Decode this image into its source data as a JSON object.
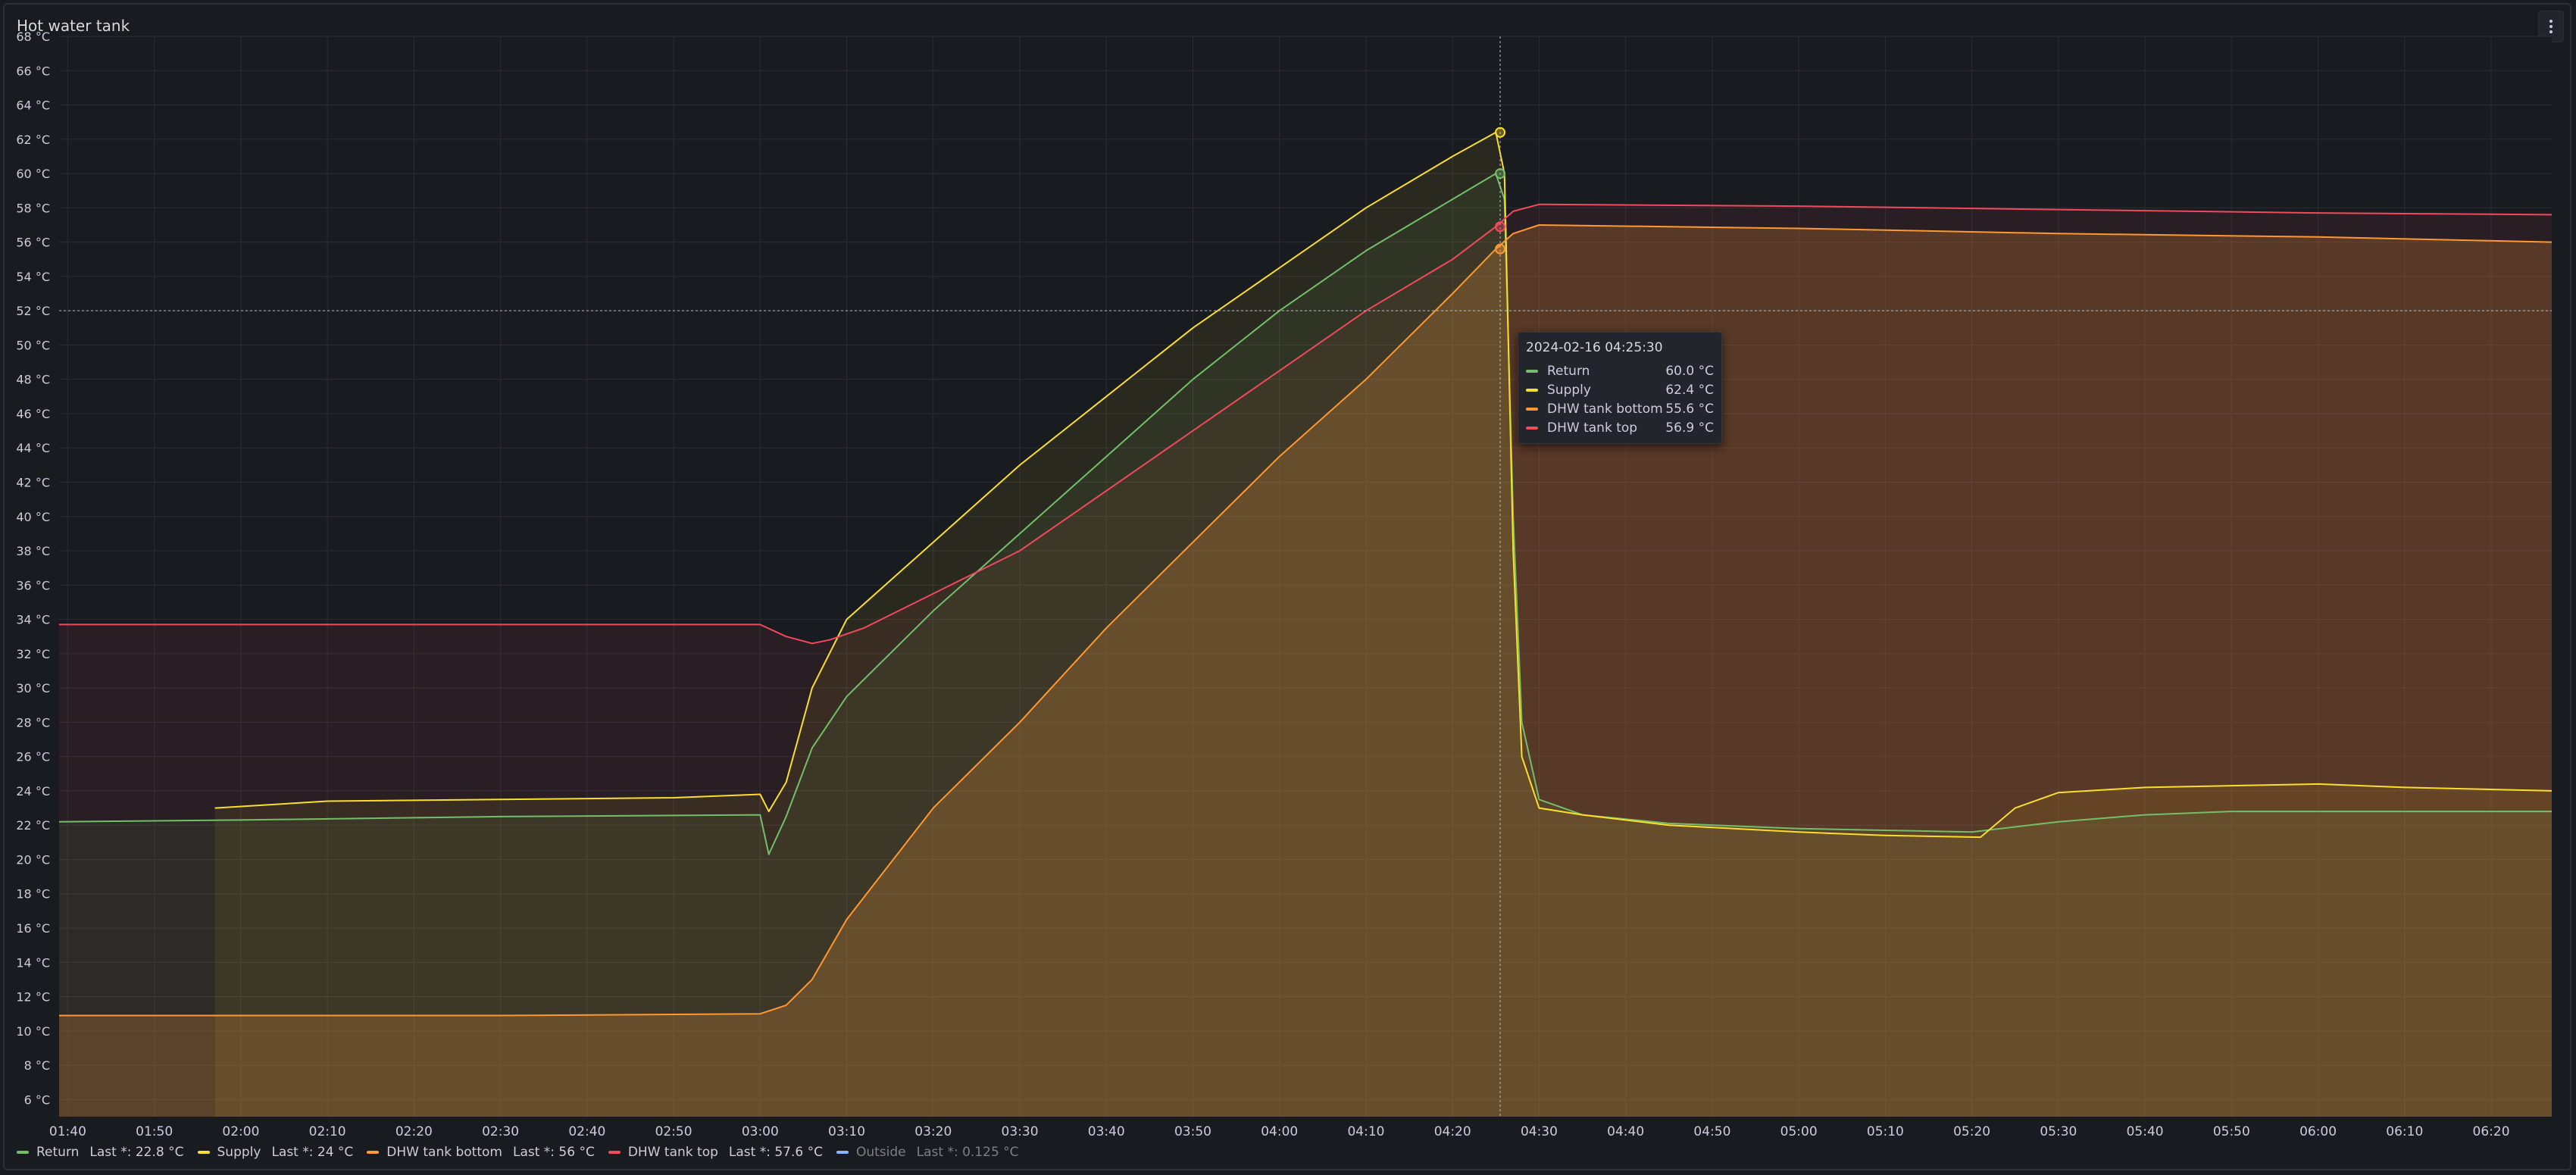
{
  "panel": {
    "title": "Hot water tank",
    "menu_icon": "vertical-ellipsis-icon"
  },
  "chart_data": {
    "type": "line",
    "ylabel": "",
    "xlabel": "",
    "y_unit": "°C",
    "ylim": [
      5,
      68
    ],
    "y_ticks": [
      "6 °C",
      "8 °C",
      "10 °C",
      "12 °C",
      "14 °C",
      "16 °C",
      "18 °C",
      "20 °C",
      "22 °C",
      "24 °C",
      "26 °C",
      "28 °C",
      "30 °C",
      "32 °C",
      "34 °C",
      "36 °C",
      "38 °C",
      "40 °C",
      "42 °C",
      "44 °C",
      "46 °C",
      "48 °C",
      "50 °C",
      "52 °C",
      "54 °C",
      "56 °C",
      "58 °C",
      "60 °C",
      "62 °C",
      "64 °C",
      "66 °C",
      "68 °C"
    ],
    "x_ticks": [
      "01:40",
      "01:50",
      "02:00",
      "02:10",
      "02:20",
      "02:30",
      "02:40",
      "02:50",
      "03:00",
      "03:10",
      "03:20",
      "03:30",
      "03:40",
      "03:50",
      "04:00",
      "04:10",
      "04:20",
      "04:30",
      "04:40",
      "04:50",
      "05:00",
      "05:10",
      "05:20",
      "05:30",
      "05:40",
      "05:50",
      "06:00",
      "06:10",
      "06:20"
    ],
    "x_range": [
      "01:39",
      "06:27"
    ],
    "grid": true,
    "legend_position": "bottom-left",
    "crosshair_time": "04:25:30",
    "crosshair_value": 52,
    "series": [
      {
        "name": "Return",
        "color": "#73bf69",
        "points": [
          [
            "01:39",
            22.2
          ],
          [
            "02:00",
            22.3
          ],
          [
            "02:30",
            22.5
          ],
          [
            "03:00",
            22.6
          ],
          [
            "03:01",
            20.3
          ],
          [
            "03:03",
            22.5
          ],
          [
            "03:06",
            26.5
          ],
          [
            "03:10",
            29.5
          ],
          [
            "03:20",
            34.5
          ],
          [
            "03:30",
            39.0
          ],
          [
            "03:40",
            43.5
          ],
          [
            "03:50",
            48.0
          ],
          [
            "04:00",
            52.0
          ],
          [
            "04:10",
            55.5
          ],
          [
            "04:20",
            58.5
          ],
          [
            "04:25",
            60.0
          ],
          [
            "04:26",
            58.5
          ],
          [
            "04:27",
            40.0
          ],
          [
            "04:28",
            28.0
          ],
          [
            "04:30",
            23.5
          ],
          [
            "04:35",
            22.6
          ],
          [
            "04:45",
            22.1
          ],
          [
            "05:00",
            21.8
          ],
          [
            "05:10",
            21.7
          ],
          [
            "05:20",
            21.6
          ],
          [
            "05:30",
            22.2
          ],
          [
            "05:40",
            22.6
          ],
          [
            "05:50",
            22.8
          ],
          [
            "06:00",
            22.8
          ],
          [
            "06:27",
            22.8
          ]
        ]
      },
      {
        "name": "Supply",
        "color": "#fade2a",
        "points": [
          [
            "01:57",
            23.0
          ],
          [
            "02:10",
            23.4
          ],
          [
            "02:30",
            23.5
          ],
          [
            "02:50",
            23.6
          ],
          [
            "03:00",
            23.8
          ],
          [
            "03:01",
            22.8
          ],
          [
            "03:03",
            24.5
          ],
          [
            "03:06",
            30.0
          ],
          [
            "03:10",
            34.0
          ],
          [
            "03:20",
            38.5
          ],
          [
            "03:30",
            43.0
          ],
          [
            "03:40",
            47.0
          ],
          [
            "03:50",
            51.0
          ],
          [
            "04:00",
            54.5
          ],
          [
            "04:10",
            58.0
          ],
          [
            "04:20",
            61.0
          ],
          [
            "04:25",
            62.4
          ],
          [
            "04:26",
            60.0
          ],
          [
            "04:27",
            38.0
          ],
          [
            "04:28",
            26.0
          ],
          [
            "04:30",
            23.0
          ],
          [
            "04:35",
            22.6
          ],
          [
            "04:45",
            22.0
          ],
          [
            "05:00",
            21.6
          ],
          [
            "05:10",
            21.4
          ],
          [
            "05:21",
            21.3
          ],
          [
            "05:25",
            23.0
          ],
          [
            "05:30",
            23.9
          ],
          [
            "05:40",
            24.2
          ],
          [
            "05:50",
            24.3
          ],
          [
            "06:00",
            24.4
          ],
          [
            "06:10",
            24.2
          ],
          [
            "06:27",
            24.0
          ]
        ]
      },
      {
        "name": "DHW tank bottom",
        "color": "#ff9830",
        "points": [
          [
            "01:39",
            10.9
          ],
          [
            "02:30",
            10.9
          ],
          [
            "03:00",
            11.0
          ],
          [
            "03:03",
            11.5
          ],
          [
            "03:06",
            13.0
          ],
          [
            "03:10",
            16.5
          ],
          [
            "03:20",
            23.0
          ],
          [
            "03:30",
            28.0
          ],
          [
            "03:40",
            33.5
          ],
          [
            "03:50",
            38.5
          ],
          [
            "04:00",
            43.5
          ],
          [
            "04:10",
            48.0
          ],
          [
            "04:20",
            53.0
          ],
          [
            "04:25",
            55.6
          ],
          [
            "04:27",
            56.5
          ],
          [
            "04:30",
            57.0
          ],
          [
            "05:00",
            56.8
          ],
          [
            "05:30",
            56.5
          ],
          [
            "06:00",
            56.3
          ],
          [
            "06:27",
            56.0
          ]
        ]
      },
      {
        "name": "DHW tank top",
        "color": "#f2495c",
        "points": [
          [
            "01:39",
            33.7
          ],
          [
            "02:30",
            33.7
          ],
          [
            "03:00",
            33.7
          ],
          [
            "03:03",
            33.0
          ],
          [
            "03:06",
            32.6
          ],
          [
            "03:08",
            32.8
          ],
          [
            "03:12",
            33.5
          ],
          [
            "03:20",
            35.5
          ],
          [
            "03:30",
            38.0
          ],
          [
            "03:40",
            41.5
          ],
          [
            "03:50",
            45.0
          ],
          [
            "04:00",
            48.5
          ],
          [
            "04:10",
            52.0
          ],
          [
            "04:20",
            55.0
          ],
          [
            "04:25",
            56.9
          ],
          [
            "04:27",
            57.8
          ],
          [
            "04:30",
            58.2
          ],
          [
            "05:00",
            58.1
          ],
          [
            "05:30",
            57.9
          ],
          [
            "06:00",
            57.7
          ],
          [
            "06:27",
            57.6
          ]
        ]
      }
    ]
  },
  "tooltip": {
    "time": "2024-02-16 04:25:30",
    "rows": [
      {
        "name": "Return",
        "value": "60.0 °C",
        "color": "#73bf69"
      },
      {
        "name": "Supply",
        "value": "62.4 °C",
        "color": "#fade2a"
      },
      {
        "name": "DHW tank bottom",
        "value": "55.6 °C",
        "color": "#ff9830"
      },
      {
        "name": "DHW tank top",
        "value": "56.9 °C",
        "color": "#f2495c"
      }
    ]
  },
  "legend": [
    {
      "name": "Return",
      "last": "Last *: 22.8 °C",
      "color": "#73bf69",
      "dim": false
    },
    {
      "name": "Supply",
      "last": "Last *: 24 °C",
      "color": "#fade2a",
      "dim": false
    },
    {
      "name": "DHW tank bottom",
      "last": "Last *: 56 °C",
      "color": "#ff9830",
      "dim": false
    },
    {
      "name": "DHW tank top",
      "last": "Last *: 57.6 °C",
      "color": "#f2495c",
      "dim": false
    },
    {
      "name": "Outside",
      "last": "Last *: 0.125 °C",
      "color": "#8ab8ff",
      "dim": true
    }
  ]
}
